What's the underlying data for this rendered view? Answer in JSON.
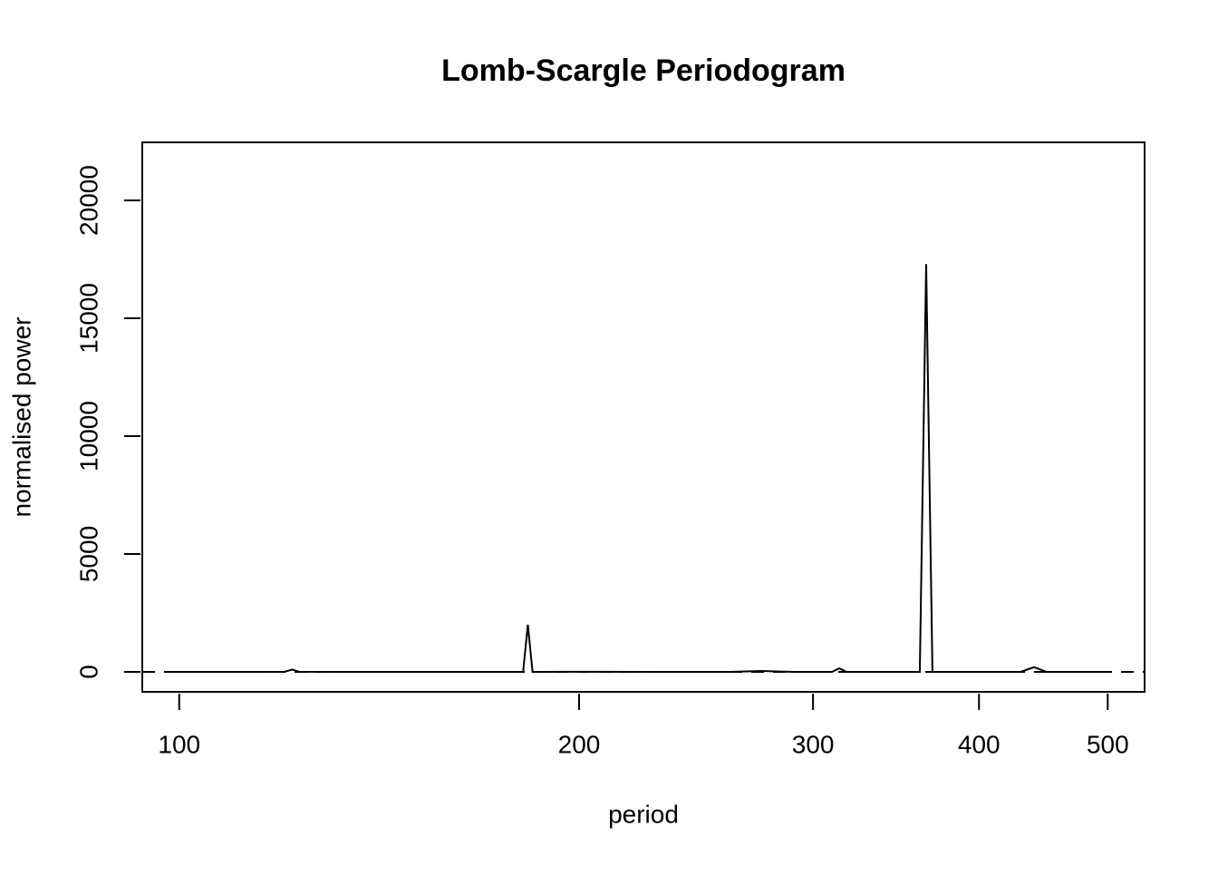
{
  "chart_data": {
    "type": "line",
    "title": "Lomb-Scargle Periodogram",
    "x_label": "period",
    "y_label": "normalised power",
    "x": [
      99,
      115,
      120,
      121.7,
      123,
      140,
      160,
      180,
      181.5,
      183,
      184.5,
      200,
      230,
      260,
      274,
      290,
      310,
      314,
      318,
      340,
      361,
      365,
      369,
      400,
      430,
      440,
      450,
      480,
      500
    ],
    "values": [
      0,
      0,
      5,
      100,
      5,
      0,
      0,
      0,
      0,
      2000,
      0,
      5,
      0,
      0,
      40,
      0,
      0,
      150,
      0,
      0,
      0,
      17300,
      0,
      0,
      0,
      200,
      0,
      0,
      0
    ],
    "color": "#000000",
    "xlim": [
      93.8,
      533
    ],
    "xticks": [
      100,
      200,
      300,
      400,
      500
    ],
    "x_log": true,
    "ylim": [
      -846,
      22462
    ],
    "yticks": [
      0,
      5000,
      10000,
      15000,
      20000
    ],
    "hline": 0
  }
}
